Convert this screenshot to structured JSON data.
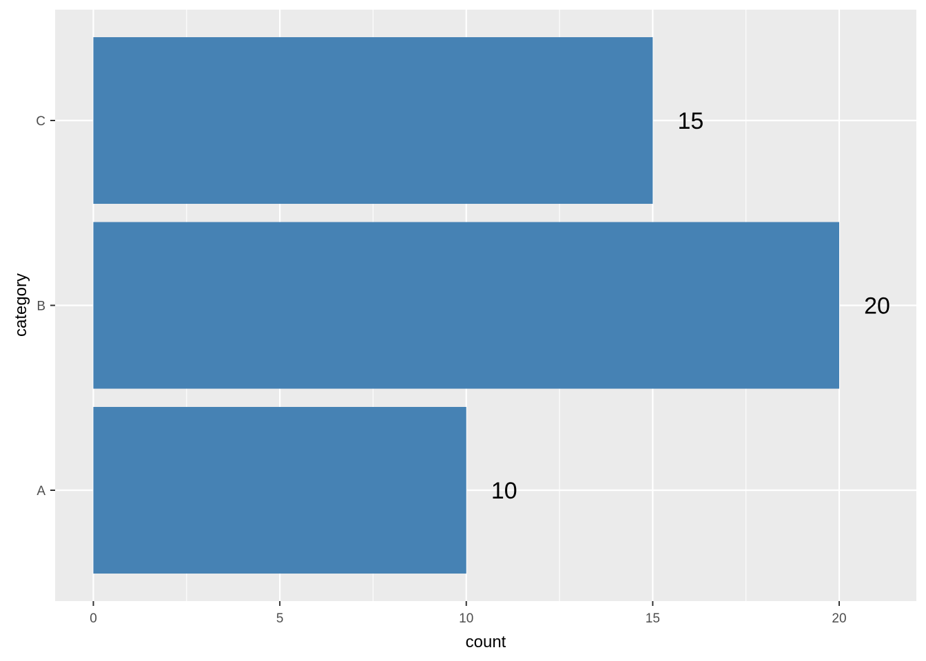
{
  "chart_data": {
    "type": "bar",
    "orientation": "horizontal",
    "categories": [
      "A",
      "B",
      "C"
    ],
    "values": [
      10,
      20,
      15
    ],
    "data_labels": [
      "10",
      "20",
      "15"
    ],
    "title": "",
    "xlabel": "count",
    "ylabel": "category",
    "xlim": [
      0,
      21.5
    ],
    "x_ticks": [
      0,
      5,
      10,
      15,
      20
    ],
    "x_tick_labels": [
      "0",
      "5",
      "10",
      "15",
      "20"
    ],
    "grid": true,
    "legend": "none",
    "colors": {
      "bar": "#4682B4",
      "panel_background": "#EBEBEB",
      "gridline": "#FFFFFF",
      "tick_mark": "#333333"
    }
  }
}
